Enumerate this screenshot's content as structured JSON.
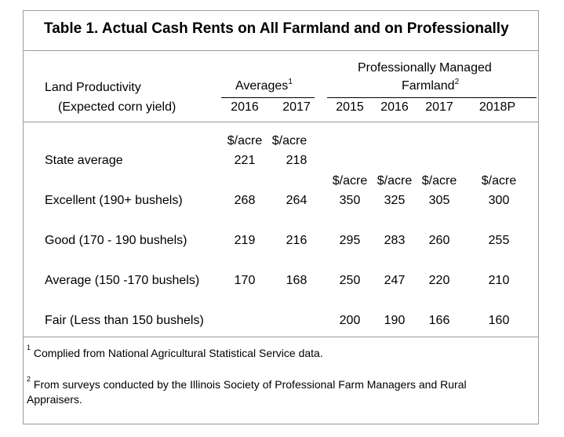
{
  "title": "Table 1.  Actual Cash Rents on All Farmland  and on Professionally",
  "header": {
    "land_productivity": "Land Productivity",
    "expected_yield": "(Expected corn yield)",
    "averages": "Averages",
    "averages_sup": "1",
    "prof_line1": "Professionally Managed",
    "prof_line2": "Farmland",
    "prof_sup": "2",
    "years": [
      "2016",
      "2017",
      "2015",
      "2016",
      "2017",
      "2018P"
    ]
  },
  "units": {
    "avg_2016": "$/acre",
    "avg_2017": "$/acre",
    "prof_2015": "$/acre",
    "prof_2016": "$/acre",
    "prof_2017": "$/acre",
    "prof_2018": "$/acre"
  },
  "rows": [
    {
      "label": "State average",
      "values": [
        "221",
        "218",
        "",
        "",
        "",
        ""
      ]
    },
    {
      "label": "Excellent (190+ bushels)",
      "values": [
        "268",
        "264",
        "350",
        "325",
        "305",
        "300"
      ]
    },
    {
      "label": "Good (170 - 190 bushels)",
      "values": [
        "219",
        "216",
        "295",
        "283",
        "260",
        "255"
      ]
    },
    {
      "label": "Average (150 -170 bushels)",
      "values": [
        "170",
        "168",
        "250",
        "247",
        "220",
        "210"
      ]
    },
    {
      "label": "Fair (Less than 150 bushels)",
      "values": [
        "",
        "",
        "200",
        "190",
        "166",
        "160"
      ]
    }
  ],
  "footnotes": [
    {
      "mark": "1",
      "text": "Complied from National Agricultural Statistical Service data."
    },
    {
      "mark": "2",
      "text": "From surveys conducted by the Illinois Society of Professional Farm Managers and Rural",
      "text2": "Appraisers."
    }
  ]
}
